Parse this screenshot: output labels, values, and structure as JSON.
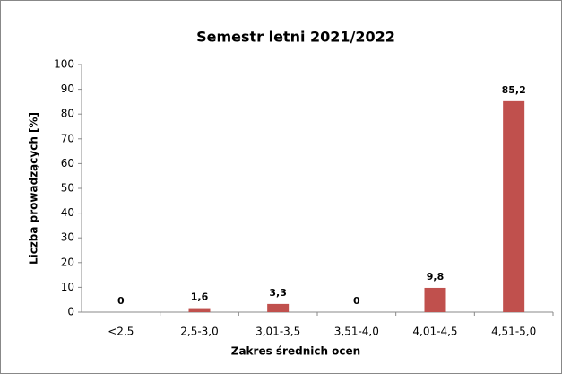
{
  "chart_data": {
    "type": "bar",
    "title": "Semestr letni 2021/2022",
    "xlabel": "Zakres średnich ocen",
    "ylabel": "Liczba prowadzących [%]",
    "categories": [
      "<2,5",
      "2,5-3,0",
      "3,01-3,5",
      "3,51-4,0",
      "4,01-4,5",
      "4,51-5,0"
    ],
    "values": [
      0,
      1.6,
      3.3,
      0,
      9.8,
      85.2
    ],
    "value_labels": [
      "0",
      "1,6",
      "3,3",
      "0",
      "9,8",
      "85,2"
    ],
    "color": "#c0504d",
    "ylim": [
      0,
      100
    ],
    "yticks": [
      0,
      10,
      20,
      30,
      40,
      50,
      60,
      70,
      80,
      90,
      100
    ],
    "grid": false
  }
}
